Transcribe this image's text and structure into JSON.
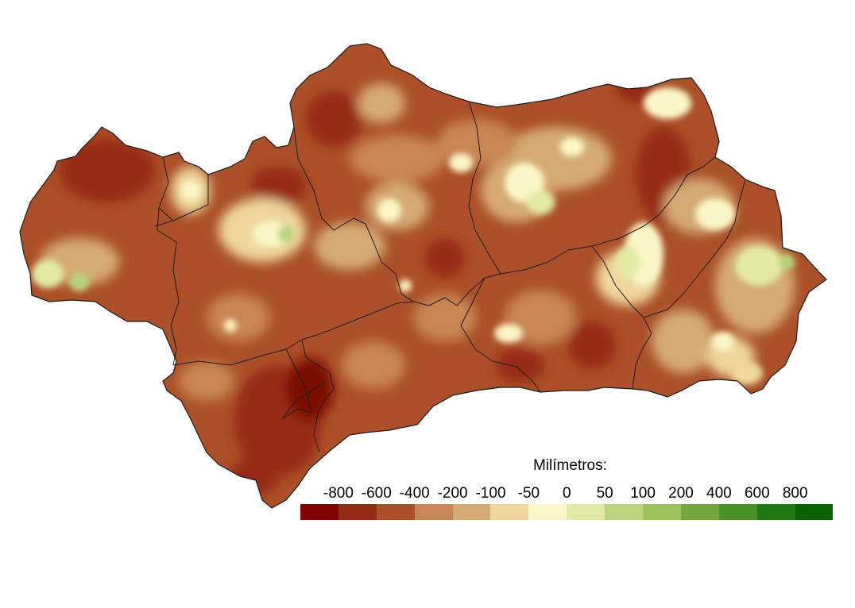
{
  "map": {
    "region": "Andalucía",
    "palette": {
      "deep": "#7a0f05",
      "dark": "#962b15",
      "mid": "#ab5028",
      "light": "#c98553",
      "tan": "#d5ab73",
      "sand": "#efd79e",
      "cream": "#fbf6c8",
      "pale_green": "#e3e9a4",
      "green": "#b8d47a",
      "border": "#1a1a1a"
    }
  },
  "legend": {
    "title": "Milímetros:",
    "labels": [
      "-800",
      "-600",
      "-400",
      "-200",
      "-100",
      "-50",
      "0",
      "50",
      "100",
      "200",
      "400",
      "600",
      "800"
    ],
    "colors": [
      "#800000",
      "#962b15",
      "#ab5028",
      "#c98553",
      "#d5ab73",
      "#efd79e",
      "#fcf8cc",
      "#e3e9a4",
      "#bcd47c",
      "#9cc25a",
      "#72a83a",
      "#4a9128",
      "#1f7a12",
      "#086400"
    ]
  }
}
